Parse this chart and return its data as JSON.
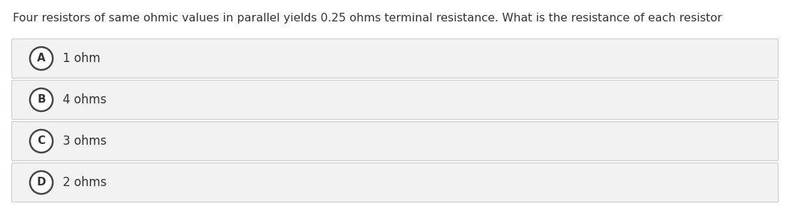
{
  "question": "Four resistors of same ohmic values in parallel yields 0.25 ohms terminal resistance. What is the resistance of each resistor",
  "options": [
    {
      "label": "A",
      "text": "1 ohm"
    },
    {
      "label": "B",
      "text": "4 ohms"
    },
    {
      "label": "C",
      "text": "3 ohms"
    },
    {
      "label": "D",
      "text": "2 ohms"
    }
  ],
  "bg_color": "#ffffff",
  "option_bg_color": "#f2f2f2",
  "option_border_color": "#cccccc",
  "question_font_size": 11.5,
  "option_font_size": 12,
  "label_font_size": 11,
  "text_color": "#333333",
  "circle_edge_color": "#444444",
  "circle_face_color": "#ffffff",
  "figwidth": 11.08,
  "figheight": 3.1,
  "dpi": 100
}
